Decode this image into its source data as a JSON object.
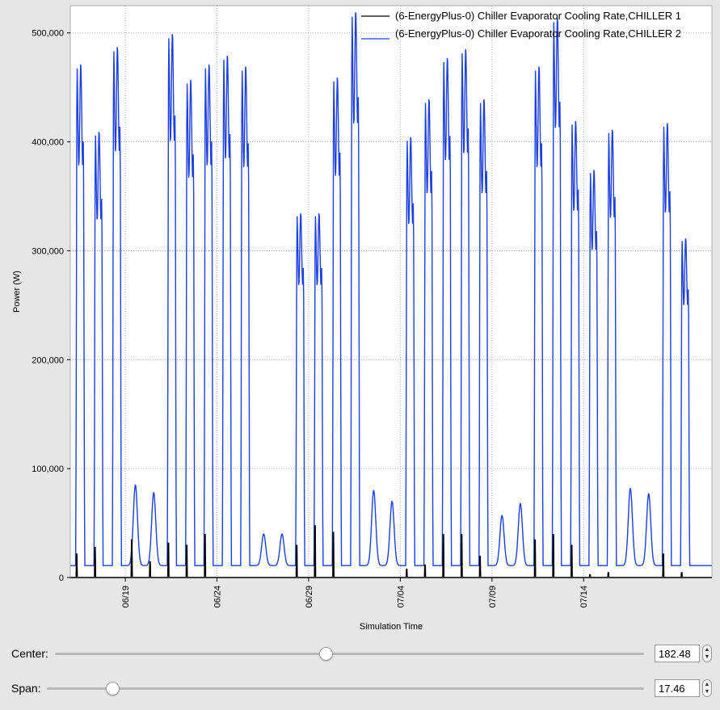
{
  "chart_data": {
    "type": "line",
    "xlabel": "Simulation Time",
    "ylabel": "Power (W)",
    "x_ticks": [
      {
        "label": "06/19",
        "day": 3
      },
      {
        "label": "06/24",
        "day": 8
      },
      {
        "label": "06/29",
        "day": 13
      },
      {
        "label": "07/04",
        "day": 18
      },
      {
        "label": "07/09",
        "day": 23
      },
      {
        "label": "07/14",
        "day": 28
      }
    ],
    "xlim_days": [
      0,
      35
    ],
    "ylim": [
      0,
      525000
    ],
    "y_ticks": [
      0,
      100000,
      200000,
      300000,
      400000,
      500000
    ],
    "y_tick_labels": [
      "0",
      "100,000",
      "200,000",
      "300,000",
      "400,000",
      "500,000"
    ],
    "grid": true,
    "legend_position": "top-right",
    "series": [
      {
        "name": "(6-EnergyPlus-0) Chiller Evaporator Cooling Rate,CHILLER 1",
        "color": "#000000",
        "daily_peak": [
          22000,
          28000,
          0,
          35000,
          15000,
          32000,
          30000,
          40000,
          0,
          0,
          0,
          0,
          30000,
          48000,
          42000,
          0,
          0,
          0,
          8000,
          12000,
          40000,
          40000,
          20000,
          0,
          0,
          35000,
          40000,
          30000,
          3000,
          5000,
          0,
          0,
          22000,
          5000,
          0
        ]
      },
      {
        "name": "(6-EnergyPlus-0) Chiller Evaporator Cooling Rate,CHILLER 2",
        "color": "#1d3ee0",
        "daily_peak": [
          472000,
          410000,
          488000,
          85000,
          78000,
          500000,
          458000,
          472000,
          480000,
          470000,
          40000,
          40000,
          335000,
          335000,
          460000,
          520000,
          80000,
          70000,
          405000,
          440000,
          478000,
          486000,
          440000,
          57000,
          68000,
          470000,
          515000,
          420000,
          375000,
          412000,
          82000,
          77000,
          418000,
          312000,
          0
        ]
      }
    ]
  },
  "controls": {
    "center": {
      "label": "Center:",
      "value": "182.48",
      "fraction": 0.46
    },
    "span": {
      "label": "Span:",
      "value": "17.46",
      "fraction": 0.11
    }
  }
}
